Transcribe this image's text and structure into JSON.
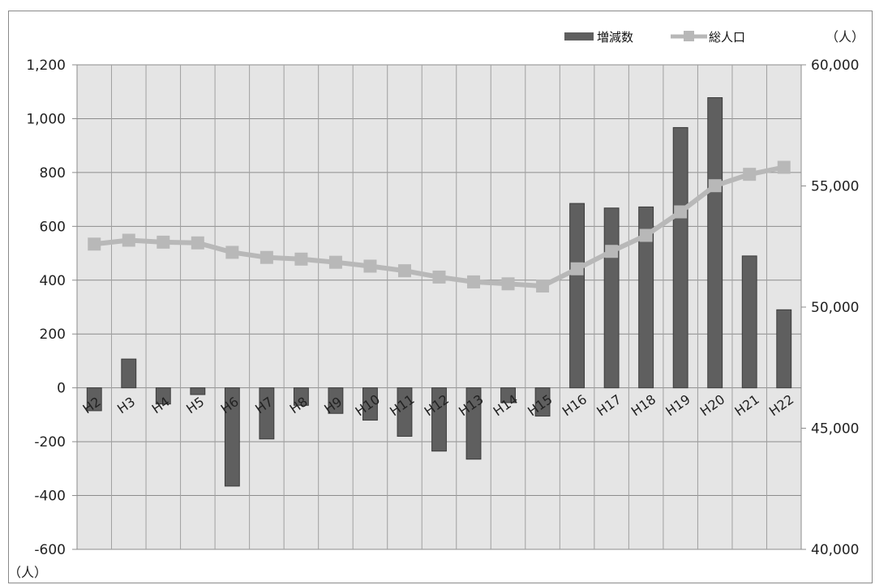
{
  "chart_data": {
    "type": "bar",
    "categories": [
      "H2",
      "H3",
      "H4",
      "H5",
      "H6",
      "H7",
      "H8",
      "H9",
      "H10",
      "H11",
      "H12",
      "H13",
      "H14",
      "H15",
      "H16",
      "H17",
      "H18",
      "H19",
      "H20",
      "H21",
      "H22"
    ],
    "series": [
      {
        "name": "増減数",
        "type": "bar",
        "axis": "left",
        "color": "#5f5f5f",
        "values": [
          -85,
          107,
          -60,
          -25,
          -365,
          -190,
          -65,
          -95,
          -120,
          -180,
          -235,
          -265,
          -55,
          -105,
          685,
          668,
          672,
          967,
          1078,
          490,
          290
        ]
      },
      {
        "name": "総人口",
        "type": "line",
        "axis": "right",
        "color": "#b8b8b8",
        "values": [
          52600,
          52760,
          52680,
          52650,
          52260,
          52050,
          51980,
          51850,
          51690,
          51500,
          51240,
          51040,
          50960,
          50870,
          51580,
          52300,
          52960,
          53930,
          55010,
          55480,
          55770
        ]
      }
    ],
    "left_axis": {
      "ylim": [
        -600,
        1200
      ],
      "ticks": [
        -600,
        -400,
        -200,
        0,
        200,
        400,
        600,
        800,
        1000,
        1200
      ],
      "tick_labels": [
        "-600",
        "-400",
        "-200",
        "0",
        "200",
        "400",
        "600",
        "800",
        "1,000",
        "1,200"
      ],
      "unit": "（人）"
    },
    "right_axis": {
      "ylim": [
        40000,
        60000
      ],
      "ticks": [
        40000,
        45000,
        50000,
        55000,
        60000
      ],
      "tick_labels": [
        "40,000",
        "45,000",
        "50,000",
        "55,000",
        "60,000"
      ],
      "unit": "（人）"
    },
    "grid": true,
    "legend_position": "top-right"
  }
}
